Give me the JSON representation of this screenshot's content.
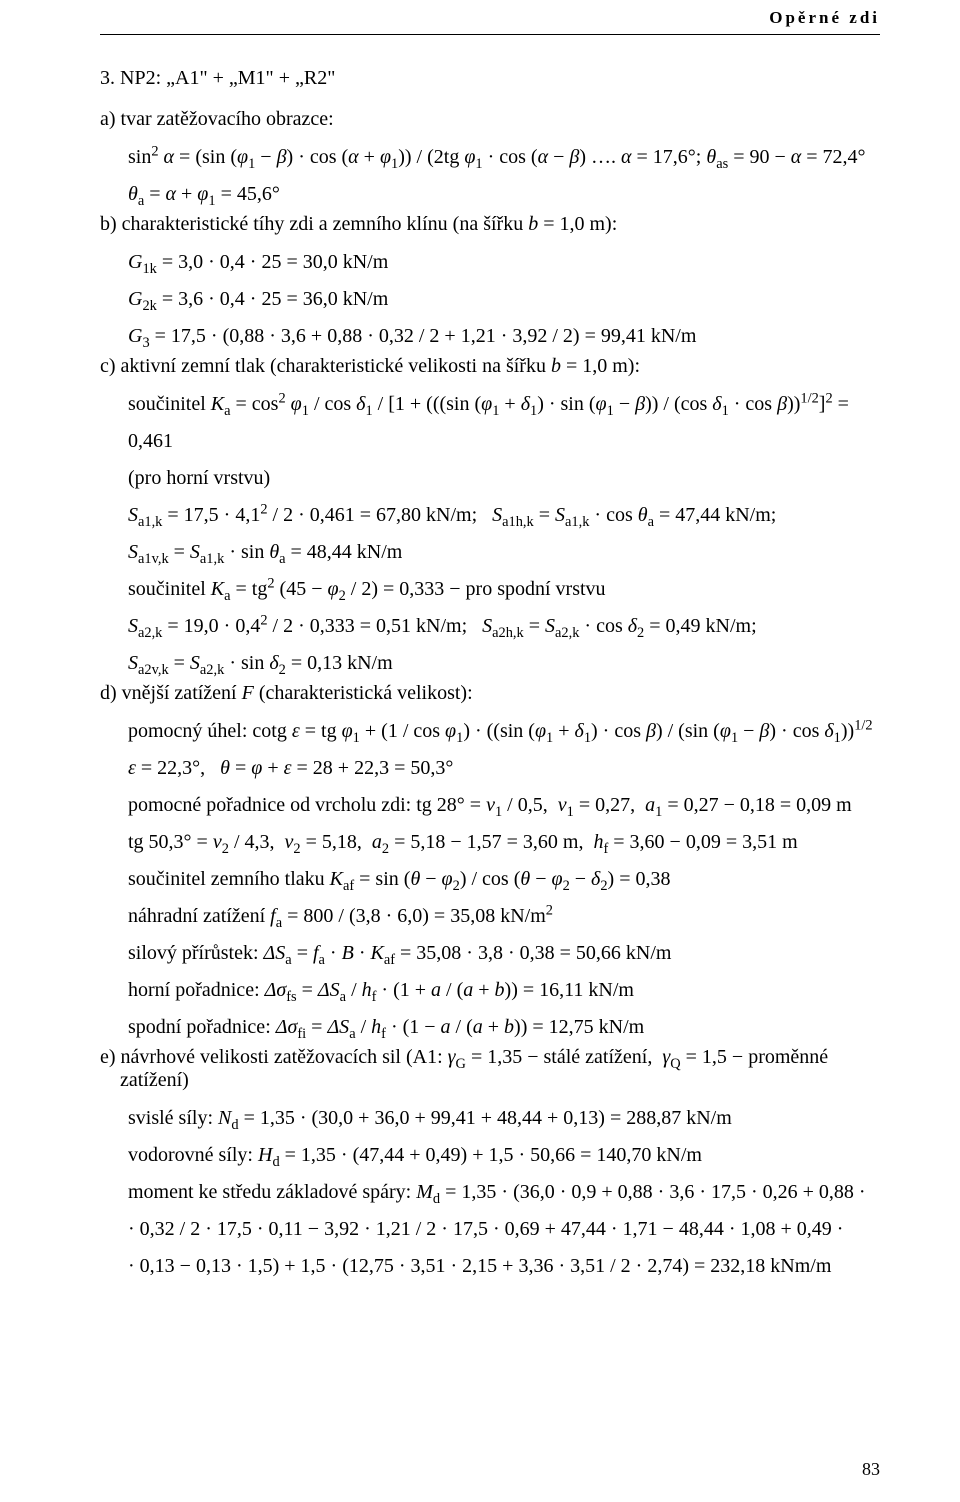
{
  "header": "Opěrné zdi",
  "page_number": "83",
  "lines": [
    {
      "cls": "section-title",
      "html": "3. NP2: „A1\" + „M1\" + „R2\""
    },
    {
      "cls": "subsection",
      "html": "a) tvar zatěžovacího obrazce:"
    },
    {
      "cls": "line indent1",
      "html": "sin<sup>2</sup> <span class='italic'>α</span> = (sin (<span class='italic'>φ</span><sub>1</sub> − <span class='italic'>β</span>) · cos (<span class='italic'>α</span> + <span class='italic'>φ</span><sub>1</sub>)) / (2tg <span class='italic'>φ</span><sub>1</sub> · cos (<span class='italic'>α</span> − <span class='italic'>β</span>) …. <span class='italic'>α</span> = 17,6°;  <span class='italic'>θ</span><sub>as</sub> = 90 − <span class='italic'>α</span> = 72,4°"
    },
    {
      "cls": "line indent1",
      "html": "<span class='italic'>θ</span><sub>a</sub> = <span class='italic'>α</span> + <span class='italic'>φ</span><sub>1</sub> = 45,6°"
    },
    {
      "cls": "subsection",
      "html": "b) charakteristické tíhy zdi a zemního klínu (na šířku <span class='italic'>b</span> = 1,0 m):"
    },
    {
      "cls": "line indent1",
      "html": "<span class='italic'>G</span><sub>1k</sub> = 3,0 · 0,4 · 25 = 30,0 kN/m"
    },
    {
      "cls": "line indent1",
      "html": "<span class='italic'>G</span><sub>2k</sub> = 3,6 · 0,4 · 25 = 36,0 kN/m"
    },
    {
      "cls": "line indent1",
      "html": "<span class='italic'>G</span><sub>3</sub> = 17,5 · (0,88 · 3,6 + 0,88 · 0,32 / 2 + 1,21 · 3,92 / 2) = 99,41 kN/m"
    },
    {
      "cls": "subsection",
      "html": "c) aktivní zemní tlak (charakteristické velikosti na šířku <span class='italic'>b</span> = 1,0 m):"
    },
    {
      "cls": "line indent1",
      "html": "součinitel  <span class='italic'>K</span><sub>a</sub> = cos<sup>2</sup> <span class='italic'>φ</span><sub>1</sub> / cos <span class='italic'>δ</span><sub>1</sub> / [1 + (((sin (<span class='italic'>φ</span><sub>1</sub> + <span class='italic'>δ</span><sub>1</sub>) · sin (<span class='italic'>φ</span><sub>1</sub> − <span class='italic'>β</span>)) / (cos <span class='italic'>δ</span><sub>1</sub> · cos <span class='italic'>β</span>))<sup>1/2</sup>]<sup>2</sup> = 0,461"
    },
    {
      "cls": "line indent1",
      "html": "(pro horní vrstvu)"
    },
    {
      "cls": "line indent1",
      "html": "<span class='italic'>S</span><sub>a1,k</sub> = 17,5 · 4,1<sup>2</sup> / 2 · 0,461 = 67,80 kN/m;&nbsp;&nbsp;&nbsp;<span class='italic'>S</span><sub>a1h,k</sub> = <span class='italic'>S</span><sub>a1,k</sub> · cos <span class='italic'>θ</span><sub>a</sub> = 47,44 kN/m;"
    },
    {
      "cls": "line indent1",
      "html": "<span class='italic'>S</span><sub>a1v,k</sub> = <span class='italic'>S</span><sub>a1,k</sub> · sin <span class='italic'>θ</span><sub>a</sub> = 48,44 kN/m"
    },
    {
      "cls": "line indent1",
      "html": "součinitel  <span class='italic'>K</span><sub>a</sub> = tg<sup>2</sup> (45 − <span class='italic'>φ</span><sub>2</sub> / 2) = 0,333 − pro spodní vrstvu"
    },
    {
      "cls": "line indent1",
      "html": "<span class='italic'>S</span><sub>a2,k</sub> = 19,0 · 0,4<sup>2</sup> / 2 · 0,333 = 0,51 kN/m;&nbsp;&nbsp;&nbsp;<span class='italic'>S</span><sub>a2h,k</sub> = <span class='italic'>S</span><sub>a2,k</sub> · cos <span class='italic'>δ</span><sub>2</sub> = 0,49 kN/m;"
    },
    {
      "cls": "line indent1",
      "html": "<span class='italic'>S</span><sub>a2v,k</sub> = <span class='italic'>S</span><sub>a2,k</sub> · sin <span class='italic'>δ</span><sub>2</sub> = 0,13 kN/m"
    },
    {
      "cls": "subsection",
      "html": "d) vnější zatížení <span class='italic'>F</span> (charakteristická velikost):"
    },
    {
      "cls": "line indent1",
      "html": "pomocný úhel:  cotg <span class='italic'>ε</span> = tg <span class='italic'>φ</span><sub>1</sub> + (1 / cos <span class='italic'>φ</span><sub>1</sub>) · ((sin (<span class='italic'>φ</span><sub>1</sub> + <span class='italic'>δ</span><sub>1</sub>) · cos <span class='italic'>β</span>) / (sin (<span class='italic'>φ</span><sub>1</sub> − <span class='italic'>β</span>) · cos <span class='italic'>δ</span><sub>1</sub>))<sup>1/2</sup>"
    },
    {
      "cls": "line indent1",
      "html": "<span class='italic'>ε</span> = 22,3°,&nbsp;&nbsp;&nbsp;<span class='italic'>θ</span> = <span class='italic'>φ</span> + <span class='italic'>ε</span> = 28 + 22,3 = 50,3°"
    },
    {
      "cls": "line indent1",
      "html": "pomocné pořadnice od vrcholu zdi:  tg 28° =  <span class='italic'>v</span><sub>1</sub> / 0,5,&nbsp;&nbsp;<span class='italic'>v</span><sub>1</sub> = 0,27,&nbsp;&nbsp;<span class='italic'>a</span><sub>1</sub> = 0,27 − 0,18 = 0,09 m"
    },
    {
      "cls": "line indent1",
      "html": "tg 50,3° =  <span class='italic'>v</span><sub>2</sub> / 4,3,&nbsp;&nbsp;<span class='italic'>v</span><sub>2</sub> = 5,18,&nbsp;&nbsp;<span class='italic'>a</span><sub>2</sub> = 5,18 − 1,57 = 3,60 m,&nbsp;&nbsp;<span class='italic'>h</span><sub>f</sub> = 3,60 − 0,09 = 3,51 m"
    },
    {
      "cls": "line indent1",
      "html": "součinitel zemního tlaku  <span class='italic'>K</span><sub>af</sub> = sin (<span class='italic'>θ</span> − <span class='italic'>φ</span><sub>2</sub>) / cos (<span class='italic'>θ</span> − <span class='italic'>φ</span><sub>2</sub> − <span class='italic'>δ</span><sub>2</sub>) = 0,38"
    },
    {
      "cls": "line indent1",
      "html": "náhradní zatížení  <span class='italic'>f</span><sub>a</sub> = 800 / (3,8 · 6,0) = 35,08 kN/m<sup>2</sup>"
    },
    {
      "cls": "line indent1",
      "html": "silový přírůstek:  <span class='italic'>ΔS</span><sub>a</sub> = <span class='italic'>f</span><sub>a</sub> · <span class='italic'>B</span> · <span class='italic'>K</span><sub>af</sub> = 35,08 · 3,8 · 0,38 = 50,66 kN/m"
    },
    {
      "cls": "line indent1",
      "html": "horní pořadnice:  <span class='italic'>Δσ</span><sub>fs</sub> = <span class='italic'>ΔS</span><sub>a</sub> / <span class='italic'>h</span><sub>f</sub> · (1 + <span class='italic'>a</span> / (<span class='italic'>a</span> + <span class='italic'>b</span>)) = 16,11 kN/m"
    },
    {
      "cls": "line indent1",
      "html": "spodní pořadnice:  <span class='italic'>Δσ</span><sub>fi</sub> = <span class='italic'>ΔS</span><sub>a</sub> / <span class='italic'>h</span><sub>f</sub> · (1 − <span class='italic'>a</span> / (<span class='italic'>a</span> + <span class='italic'>b</span>)) = 12,75 kN/m"
    },
    {
      "cls": "subsection",
      "html": "e) návrhové velikosti zatěžovacích sil (A1: <span class='italic'>γ</span><sub>G</sub> = 1,35 − stálé zatížení, &nbsp;<span class='italic'>γ</span><sub>Q</sub> = 1,5 − proměnné<br>&nbsp;&nbsp;&nbsp;&nbsp;zatížení)"
    },
    {
      "cls": "line indent1",
      "html": "svislé síly:  <span class='italic'>N</span><sub>d</sub> = 1,35 · (30,0 + 36,0 + 99,41 + 48,44 + 0,13) = 288,87 kN/m"
    },
    {
      "cls": "line indent1",
      "html": "vodorovné síly:  <span class='italic'>H</span><sub>d</sub> = 1,35 · (47,44 + 0,49) + 1,5 · 50,66 = 140,70 kN/m"
    },
    {
      "cls": "line indent1",
      "html": "moment ke středu základové spáry:  <span class='italic'>M</span><sub>d</sub> = 1,35 · (36,0 · 0,9 + 0,88 · 3,6 · 17,5 · 0,26 + 0,88 ·"
    },
    {
      "cls": "line indent1",
      "html": "· 0,32 / 2 · 17,5 · 0,11 − 3,92 · 1,21 / 2 · 17,5 · 0,69 + 47,44 · 1,71 − 48,44 · 1,08 + 0,49 ·"
    },
    {
      "cls": "line indent1",
      "html": "· 0,13 − 0,13 · 1,5) + 1,5 · (12,75 · 3,51 · 2,15 + 3,36 · 3,51 / 2 · 2,74) = 232,18 kNm/m"
    }
  ]
}
